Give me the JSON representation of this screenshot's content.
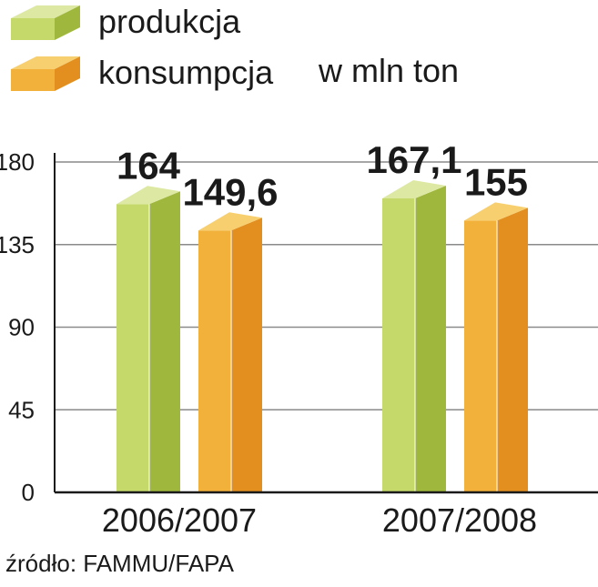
{
  "chart_data": {
    "type": "bar",
    "title": "",
    "unit_note": "w mln ton",
    "xlabel": "",
    "ylabel": "",
    "categories": [
      "2006/2007",
      "2007/2008"
    ],
    "series": [
      {
        "name": "produkcja",
        "values": [
          164,
          167.1
        ],
        "labels": [
          "164",
          "167,1"
        ],
        "color_front": "#c5d96a",
        "color_side": "#9fb73d",
        "color_top": "#dde9a3"
      },
      {
        "name": "konsumpcja",
        "values": [
          149.6,
          155
        ],
        "labels": [
          "149,6",
          "155"
        ],
        "color_front": "#f2b13b",
        "color_side": "#e38f1f",
        "color_top": "#f8cf6e"
      }
    ],
    "ylim": [
      0,
      180
    ],
    "yticks": [
      0,
      45,
      90,
      135,
      180
    ],
    "grid": true,
    "legend_position": "top-left",
    "source": "źródło: FAMMU/FAPA"
  }
}
